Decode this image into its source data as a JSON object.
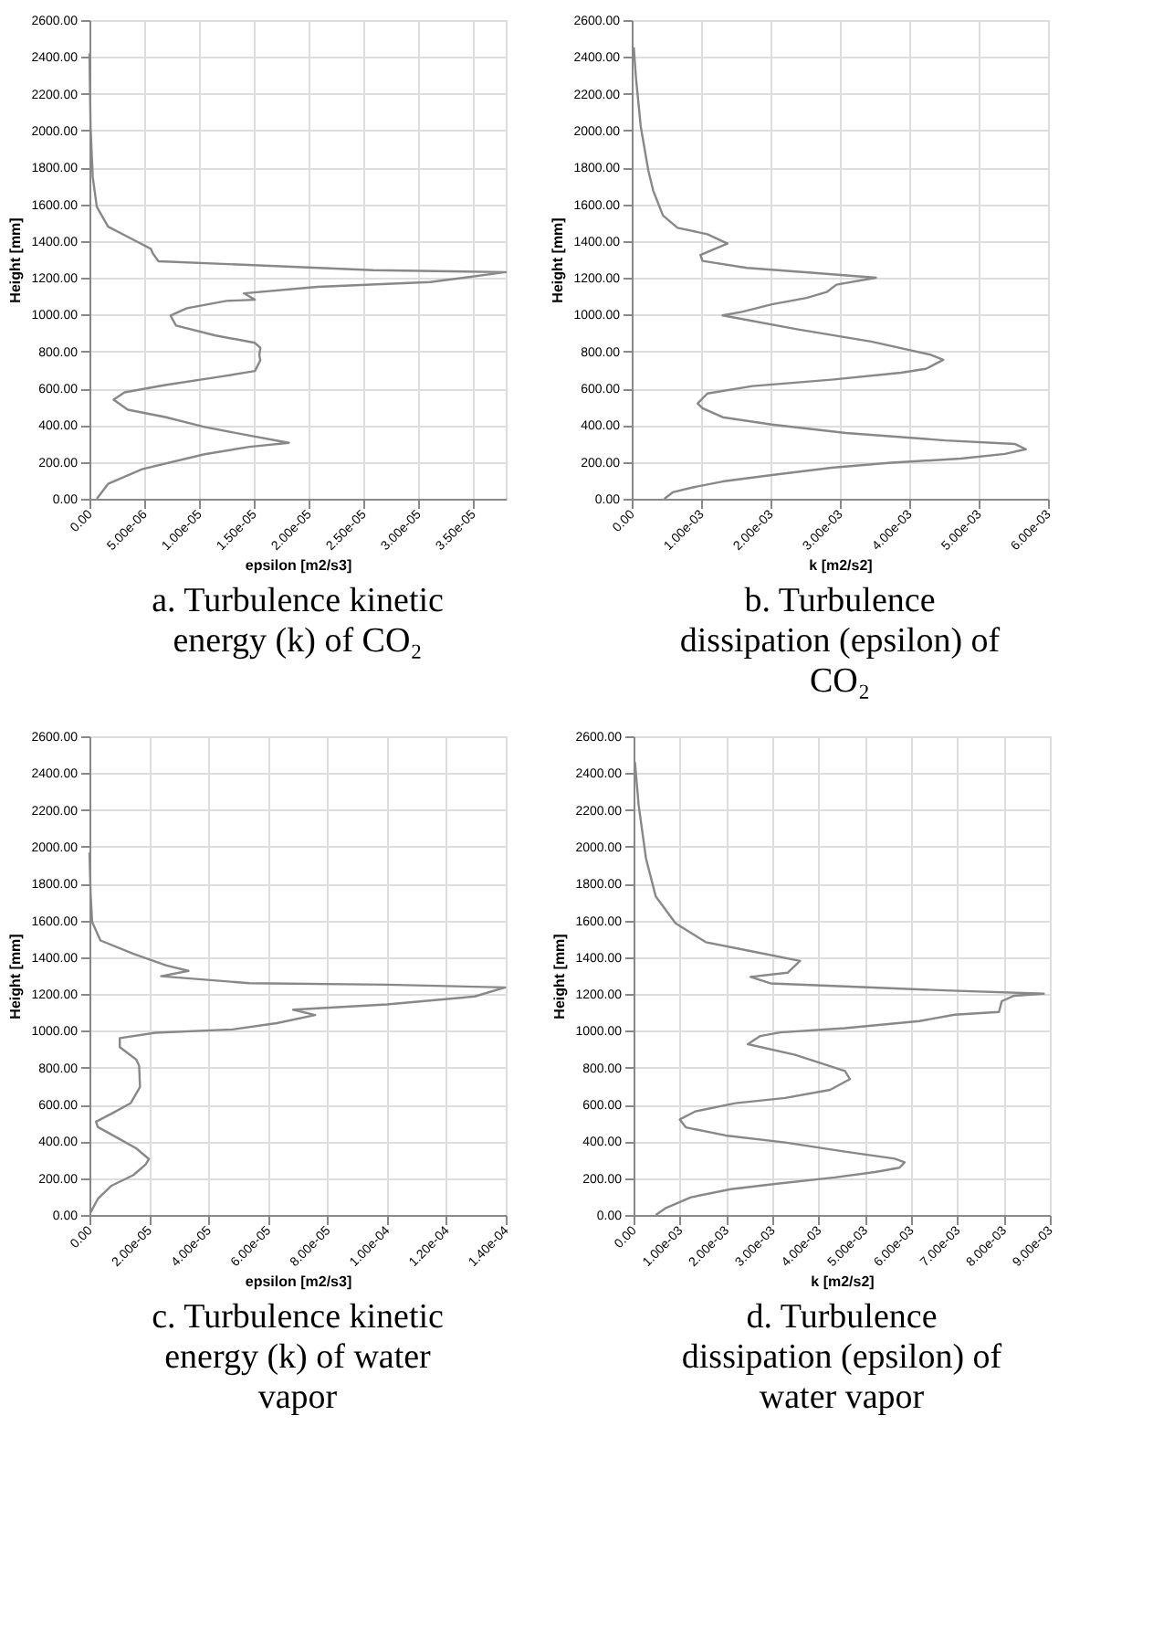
{
  "chart_data": [
    {
      "type": "line",
      "title": "a. Turbulence kinetic energy (k) of CO₂",
      "xlabel": "epsilon [m2/s3]",
      "ylabel": "Height [mm]",
      "grid": true,
      "xlim": [
        0,
        3.8e-05
      ],
      "ylim": [
        0,
        2600
      ],
      "xticks": [
        {
          "value": 0,
          "label": "0.00"
        },
        {
          "value": 5e-06,
          "label": "5.00e-06"
        },
        {
          "value": 1e-05,
          "label": "1.00e-05"
        },
        {
          "value": 1.5e-05,
          "label": "1.50e-05"
        },
        {
          "value": 2e-05,
          "label": "2.00e-05"
        },
        {
          "value": 2.5e-05,
          "label": "2.50e-05"
        },
        {
          "value": 3e-05,
          "label": "3.00e-05"
        },
        {
          "value": 3.5e-05,
          "label": "3.50e-05"
        }
      ],
      "yticks": [
        {
          "value": 0,
          "label": "0.00"
        },
        {
          "value": 200,
          "label": "200.00"
        },
        {
          "value": 400,
          "label": "400.00"
        },
        {
          "value": 600,
          "label": "600.00"
        },
        {
          "value": 800,
          "label": "800.00"
        },
        {
          "value": 1000,
          "label": "1000.00"
        },
        {
          "value": 1200,
          "label": "1200.00"
        },
        {
          "value": 1400,
          "label": "1400.00"
        },
        {
          "value": 1600,
          "label": "1600.00"
        },
        {
          "value": 1800,
          "label": "1800.00"
        },
        {
          "value": 2000,
          "label": "2000.00"
        },
        {
          "value": 2200,
          "label": "2200.00"
        },
        {
          "value": 2400,
          "label": "2400.00"
        },
        {
          "value": 2600,
          "label": "2600.00"
        }
      ],
      "series": [
        {
          "color": "#888888",
          "x": [
            6.7e-07,
            1.7e-06,
            4.8e-06,
            1.05e-05,
            1.46e-05,
            1.82e-05,
            1.41e-05,
            1.05e-05,
            6.9e-06,
            3.5e-06,
            2.2e-06,
            3.2e-06,
            6.9e-06,
            1.15e-05,
            1.51e-05,
            1.56e-05,
            1.55e-05,
            1.56e-05,
            1.51e-05,
            1.15e-05,
            7.9e-06,
            7.4e-06,
            8.9e-06,
            1.25e-05,
            1.51e-05,
            1.41e-05,
            2.08e-05,
            3.11e-05,
            3.8e-05,
            2.59e-05,
            6.3e-06,
            5.8e-06,
            5.6e-06,
            4.3e-06,
            1.7e-06,
            6.7e-07,
            3e-07,
            1e-07,
            0
          ],
          "values": [
            0,
            81,
            161,
            242,
            282,
            304,
            349,
            390,
            444,
            484,
            538,
            578,
            618,
            659,
            694,
            753,
            780,
            820,
            847,
            887,
            941,
            995,
            1035,
            1075,
            1081,
            1116,
            1151,
            1177,
            1231,
            1242,
            1290,
            1331,
            1358,
            1398,
            1478,
            1586,
            1747,
            2016,
            2419
          ]
        }
      ]
    },
    {
      "type": "line",
      "title": "b. Turbulence dissipation (epsilon) of CO₂",
      "xlabel": "k [m2/s2]",
      "ylabel": "Height [mm]",
      "grid": true,
      "xlim": [
        0,
        0.006
      ],
      "ylim": [
        0,
        2600
      ],
      "xticks": [
        {
          "value": 0,
          "label": "0.00"
        },
        {
          "value": 0.001,
          "label": "1.00e-03"
        },
        {
          "value": 0.002,
          "label": "2.00e-03"
        },
        {
          "value": 0.003,
          "label": "3.00e-03"
        },
        {
          "value": 0.004,
          "label": "4.00e-03"
        },
        {
          "value": 0.005,
          "label": "5.00e-03"
        },
        {
          "value": 0.006,
          "label": "6.00e-03"
        }
      ],
      "yticks": [
        {
          "value": 0,
          "label": "0.00"
        },
        {
          "value": 200,
          "label": "200.00"
        },
        {
          "value": 400,
          "label": "400.00"
        },
        {
          "value": 600,
          "label": "600.00"
        },
        {
          "value": 800,
          "label": "800.00"
        },
        {
          "value": 1000,
          "label": "1000.00"
        },
        {
          "value": 1200,
          "label": "1200.00"
        },
        {
          "value": 1400,
          "label": "1400.00"
        },
        {
          "value": 1600,
          "label": "1600.00"
        },
        {
          "value": 1800,
          "label": "1800.00"
        },
        {
          "value": 2000,
          "label": "2000.00"
        },
        {
          "value": 2200,
          "label": "2200.00"
        },
        {
          "value": 2400,
          "label": "2400.00"
        },
        {
          "value": 2600,
          "label": "2600.00"
        }
      ],
      "series": [
        {
          "color": "#888888",
          "x": [
            0.00047,
            0.00059,
            0.00088,
            0.00131,
            0.00202,
            0.00288,
            0.00374,
            0.00474,
            0.00538,
            0.00568,
            0.00552,
            0.00452,
            0.00309,
            0.00202,
            0.00131,
            0.00102,
            0.00095,
            0.00109,
            0.00174,
            0.00288,
            0.00388,
            0.00424,
            0.00449,
            0.00431,
            0.00345,
            0.00238,
            0.00131,
            0.00159,
            0.00202,
            0.00252,
            0.00281,
            0.00295,
            0.00352,
            0.00259,
            0.00166,
            0.00102,
            0.00099,
            0.00138,
            0.00109,
            0.00066,
            0.00045,
            0.00031,
            0.00024,
            0.00013,
            6e-05,
            3e-05
          ],
          "values": [
            0,
            35,
            62,
            94,
            129,
            169,
            196,
            218,
            244,
            269,
            298,
            317,
            357,
            403,
            443,
            492,
            518,
            572,
            612,
            647,
            685,
            706,
            755,
            782,
            854,
            921,
            996,
            1015,
            1056,
            1091,
            1123,
            1163,
            1201,
            1228,
            1254,
            1292,
            1324,
            1386,
            1437,
            1472,
            1539,
            1673,
            1781,
            2022,
            2291,
            2452
          ]
        }
      ]
    },
    {
      "type": "line",
      "title": "c. Turbulence kinetic energy (k) of water vapor",
      "xlabel": "epsilon [m2/s3]",
      "ylabel": "Height [mm]",
      "grid": true,
      "xlim": [
        0,
        0.00014
      ],
      "ylim": [
        0,
        2600
      ],
      "xticks": [
        {
          "value": 0,
          "label": "0.00"
        },
        {
          "value": 2e-05,
          "label": "2.00e-05"
        },
        {
          "value": 4e-05,
          "label": "4.00e-05"
        },
        {
          "value": 6e-05,
          "label": "6.00e-05"
        },
        {
          "value": 8e-05,
          "label": "8.00e-05"
        },
        {
          "value": 0.0001,
          "label": "1.00e-04"
        },
        {
          "value": 0.00012,
          "label": "1.20e-04"
        },
        {
          "value": 0.00014,
          "label": "1.40e-04"
        }
      ],
      "yticks": [
        {
          "value": 0,
          "label": "0.00"
        },
        {
          "value": 200,
          "label": "200.00"
        },
        {
          "value": 400,
          "label": "400.00"
        },
        {
          "value": 600,
          "label": "600.00"
        },
        {
          "value": 800,
          "label": "800.00"
        },
        {
          "value": 1000,
          "label": "1000.00"
        },
        {
          "value": 1200,
          "label": "1200.00"
        },
        {
          "value": 1400,
          "label": "1400.00"
        },
        {
          "value": 1600,
          "label": "1600.00"
        },
        {
          "value": 1800,
          "label": "1800.00"
        },
        {
          "value": 2000,
          "label": "2000.00"
        },
        {
          "value": 2200,
          "label": "2200.00"
        },
        {
          "value": 2400,
          "label": "2400.00"
        },
        {
          "value": 2600,
          "label": "2600.00"
        }
      ],
      "series": [
        {
          "color": "#888888",
          "x": [
            4e-07,
            2.8e-06,
            7.4e-06,
            1.48e-05,
            1.89e-05,
            2e-05,
            1.57e-05,
            9.3e-06,
            2.8e-06,
            2.2e-06,
            7.4e-06,
            1.39e-05,
            1.7e-05,
            1.67e-05,
            1.57e-05,
            1.02e-05,
            1.02e-05,
            2.22e-05,
            4.81e-05,
            6.3e-05,
            7.59e-05,
            6.85e-05,
            0.0001,
            0.0001296,
            0.0001398,
            0.0001,
            5.37e-05,
            2.41e-05,
            3.33e-05,
            2.59e-05,
            1.48e-05,
            3.7e-06,
            9e-07,
            4e-07,
            0
          ],
          "values": [
            14,
            87,
            159,
            217,
            275,
            304,
            362,
            420,
            478,
            507,
            550,
            608,
            695,
            811,
            845,
            912,
            961,
            990,
            1008,
            1042,
            1086,
            1115,
            1144,
            1187,
            1236,
            1251,
            1259,
            1297,
            1326,
            1355,
            1419,
            1491,
            1592,
            1737,
            1969
          ]
        }
      ]
    },
    {
      "type": "line",
      "title": "d. Turbulence dissipation (epsilon) of water vapor",
      "xlabel": "k [m2/s2]",
      "ylabel": "Height [mm]",
      "grid": true,
      "xlim": [
        0,
        0.009
      ],
      "ylim": [
        0,
        2600
      ],
      "xticks": [
        {
          "value": 0,
          "label": "0.00"
        },
        {
          "value": 0.001,
          "label": "1.00e-03"
        },
        {
          "value": 0.002,
          "label": "2.00e-03"
        },
        {
          "value": 0.003,
          "label": "3.00e-03"
        },
        {
          "value": 0.004,
          "label": "4.00e-03"
        },
        {
          "value": 0.005,
          "label": "5.00e-03"
        },
        {
          "value": 0.006,
          "label": "6.00e-03"
        },
        {
          "value": 0.007,
          "label": "7.00e-03"
        },
        {
          "value": 0.008,
          "label": "8.00e-03"
        },
        {
          "value": 0.009,
          "label": "9.00e-03"
        }
      ],
      "yticks": [
        {
          "value": 0,
          "label": "0.00"
        },
        {
          "value": 200,
          "label": "200.00"
        },
        {
          "value": 400,
          "label": "400.00"
        },
        {
          "value": 600,
          "label": "600.00"
        },
        {
          "value": 800,
          "label": "800.00"
        },
        {
          "value": 1000,
          "label": "1000.00"
        },
        {
          "value": 1200,
          "label": "1200.00"
        },
        {
          "value": 1400,
          "label": "1400.00"
        },
        {
          "value": 1600,
          "label": "1600.00"
        },
        {
          "value": 1800,
          "label": "1800.00"
        },
        {
          "value": 2000,
          "label": "2000.00"
        },
        {
          "value": 2200,
          "label": "2200.00"
        },
        {
          "value": 2400,
          "label": "2400.00"
        },
        {
          "value": 2600,
          "label": "2600.00"
        }
      ],
      "series": [
        {
          "color": "#888888",
          "x": [
            0.00048,
            0.0007,
            0.00124,
            0.0021,
            0.00306,
            0.00435,
            0.00522,
            0.00575,
            0.00586,
            0.00565,
            0.00457,
            0.00328,
            0.00199,
            0.00113,
            0.001,
            0.00134,
            0.0022,
            0.00328,
            0.00425,
            0.00468,
            0.00457,
            0.00349,
            0.00247,
            0.00274,
            0.00317,
            0.00457,
            0.00618,
            0.00694,
            0.0079,
            0.00796,
            0.00823,
            0.00887,
            0.00672,
            0.00296,
            0.00253,
            0.00333,
            0.0036,
            0.00242,
            0.00156,
            0.00091,
            0.00048,
            0.00027,
            0.00011,
            3e-05
          ],
          "values": [
            0,
            38,
            96,
            140,
            169,
            204,
            233,
            257,
            286,
            306,
            344,
            394,
            432,
            476,
            519,
            563,
            607,
            636,
            680,
            738,
            782,
            870,
            928,
            972,
            992,
            1015,
            1053,
            1088,
            1103,
            1161,
            1191,
            1202,
            1220,
            1258,
            1293,
            1316,
            1380,
            1439,
            1482,
            1584,
            1730,
            1935,
            2226,
            2460
          ]
        }
      ]
    }
  ]
}
